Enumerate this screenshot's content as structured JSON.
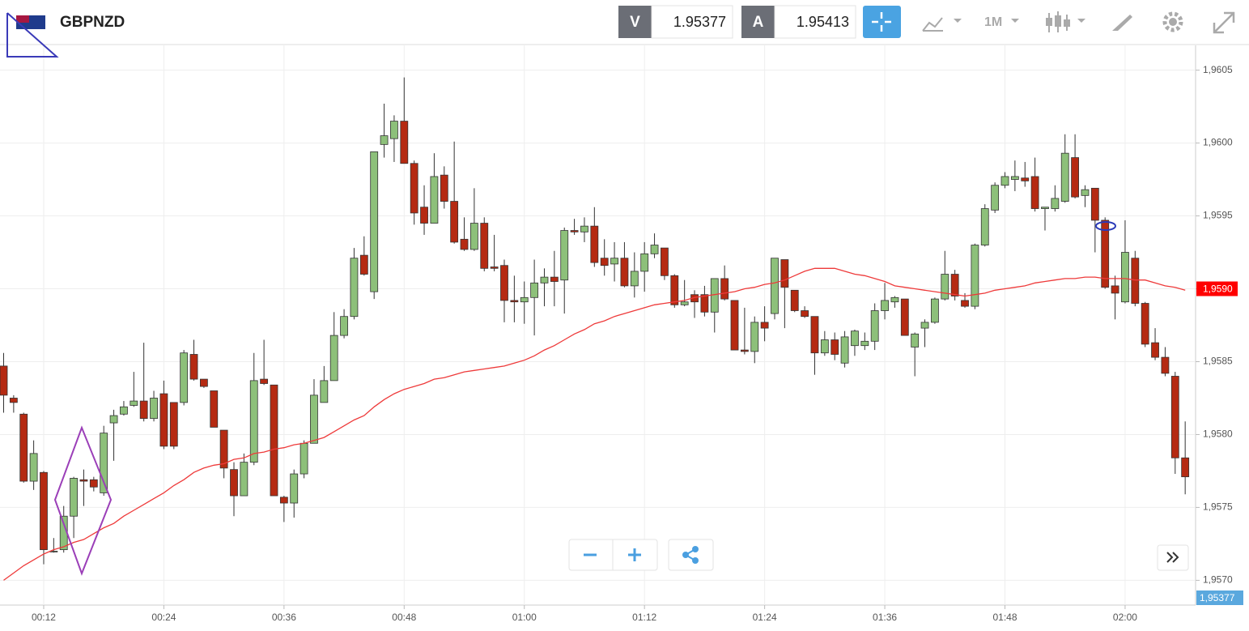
{
  "toolbar": {
    "symbol": "GBPNZD",
    "bid_label": "V",
    "bid": 1.95377,
    "ask_label": "A",
    "ask": 1.95413,
    "timeframe": "1M"
  },
  "chart_data": {
    "type": "candlestick",
    "categories": [
      null,
      null,
      null,
      null,
      "00:12",
      null,
      null,
      null,
      null,
      null,
      null,
      null,
      null,
      null,
      null,
      null,
      "00:24",
      null,
      null,
      null,
      null,
      null,
      null,
      null,
      null,
      null,
      null,
      null,
      "00:36",
      null,
      null,
      null,
      null,
      null,
      null,
      null,
      null,
      null,
      null,
      null,
      "00:48",
      null,
      null,
      null,
      null,
      null,
      null,
      null,
      null,
      null,
      null,
      null,
      "01:00",
      null,
      null,
      null,
      null,
      null,
      null,
      null,
      null,
      null,
      null,
      null,
      "01:12",
      null,
      null,
      null,
      null,
      null,
      null,
      null,
      null,
      null,
      null,
      null,
      "01:24",
      null,
      null,
      null,
      null,
      null,
      null,
      null,
      null,
      null,
      null,
      null,
      "01:36",
      null,
      null,
      null,
      null,
      null,
      null,
      null,
      null,
      null,
      null,
      null,
      "01:48",
      null,
      null,
      null,
      null,
      null,
      null,
      null,
      null,
      null,
      null,
      null,
      "02:00",
      null,
      null,
      null,
      null,
      null,
      null
    ],
    "open": [
      1.95847,
      1.95825,
      1.95814,
      1.95768,
      1.95774,
      1.9572,
      1.95721,
      1.95744,
      1.95769,
      1.95769,
      1.9576,
      1.95808,
      1.95814,
      1.9582,
      1.95823,
      1.95811,
      1.95828,
      1.95822,
      1.95822,
      1.95855,
      1.95838,
      1.9583,
      1.95803,
      1.95776,
      1.95758,
      1.95781,
      1.95838,
      1.95834,
      1.95757,
      1.95753,
      1.95773,
      1.95794,
      1.95822,
      1.95837,
      1.95868,
      1.95881,
      1.95923,
      1.95898,
      1.95999,
      1.96003,
      1.96015,
      1.95986,
      1.95956,
      1.95945,
      1.95978,
      1.9596,
      1.95934,
      1.95927,
      1.95945,
      1.95915,
      1.95916,
      1.95892,
      1.95891,
      1.95894,
      1.95904,
      1.95908,
      1.95906,
      1.9594,
      1.95939,
      1.95943,
      1.95921,
      1.95917,
      1.95921,
      1.95902,
      1.95912,
      1.95924,
      1.95928,
      1.95909,
      1.95889,
      1.95896,
      1.95896,
      1.95884,
      1.95907,
      1.95892,
      1.95858,
      1.95857,
      1.95877,
      1.95883,
      1.9592,
      1.95899,
      1.95885,
      1.95881,
      1.95856,
      1.95865,
      1.95849,
      1.95861,
      1.95861,
      1.95864,
      1.95885,
      1.95891,
      1.95893,
      1.9586,
      1.95873,
      1.95877,
      1.95893,
      1.9591,
      1.95892,
      1.95888,
      1.9593,
      1.95954,
      1.95971,
      1.95975,
      1.95976,
      1.95977,
      1.95955,
      1.95955,
      1.9596,
      1.9599,
      1.95964,
      1.95969,
      1.95947,
      1.95902,
      1.95891,
      1.95921,
      1.9589,
      1.95863,
      1.95853,
      1.9584,
      1.95784
    ],
    "high": [
      1.95856,
      1.95827,
      1.95815,
      1.95796,
      1.95775,
      1.95729,
      1.95751,
      1.95771,
      1.95776,
      1.95771,
      1.95806,
      1.95817,
      1.95823,
      1.95843,
      1.95863,
      1.9583,
      1.95837,
      1.95822,
      1.95858,
      1.95865,
      1.95838,
      1.9583,
      1.95803,
      1.95781,
      1.95787,
      1.95856,
      1.95865,
      1.95834,
      1.95758,
      1.95776,
      1.95796,
      1.95838,
      1.95847,
      1.95884,
      1.95886,
      1.95928,
      1.95936,
      1.95994,
      1.96027,
      1.96019,
      1.96045,
      1.95988,
      1.95971,
      1.95993,
      1.95984,
      1.96001,
      1.95949,
      1.95969,
      1.95949,
      1.95937,
      1.9592,
      1.95909,
      1.95905,
      1.9592,
      1.95914,
      1.95926,
      1.95942,
      1.95948,
      1.95949,
      1.95956,
      1.95934,
      1.95932,
      1.95932,
      1.95925,
      1.95932,
      1.95938,
      1.95928,
      1.9591,
      1.95906,
      1.95899,
      1.95902,
      1.95907,
      1.95916,
      1.95892,
      1.95887,
      1.95881,
      1.95888,
      1.95921,
      1.9592,
      1.95899,
      1.95888,
      1.95881,
      1.95871,
      1.9587,
      1.95871,
      1.95872,
      1.9587,
      1.9589,
      1.95904,
      1.95895,
      1.95893,
      1.9587,
      1.95879,
      1.95894,
      1.95926,
      1.95913,
      1.95897,
      1.95931,
      1.95958,
      1.95973,
      1.9598,
      1.95988,
      1.95987,
      1.9599,
      1.95956,
      1.95971,
      1.96006,
      1.96006,
      1.95971,
      1.95969,
      1.95949,
      1.95909,
      1.95947,
      1.95926,
      1.95891,
      1.95873,
      1.9586,
      1.95843,
      1.95809
    ],
    "low": [
      1.95815,
      1.95815,
      1.95767,
      1.95762,
      1.95711,
      1.95719,
      1.95719,
      1.95729,
      1.95751,
      1.95761,
      1.95758,
      1.95782,
      1.95813,
      1.95819,
      1.95809,
      1.95809,
      1.9579,
      1.9579,
      1.9582,
      1.95837,
      1.95832,
      1.95805,
      1.9577,
      1.95744,
      1.95758,
      1.95779,
      1.95834,
      1.95758,
      1.9574,
      1.95743,
      1.9577,
      1.95794,
      1.95822,
      1.95837,
      1.95866,
      1.95879,
      1.95909,
      1.95893,
      1.9599,
      1.95987,
      1.95986,
      1.95944,
      1.95937,
      1.95945,
      1.95955,
      1.95931,
      1.95926,
      1.95926,
      1.95912,
      1.95912,
      1.95877,
      1.95877,
      1.95876,
      1.95868,
      1.95888,
      1.95888,
      1.95883,
      1.95937,
      1.95932,
      1.95915,
      1.95909,
      1.95905,
      1.95901,
      1.95894,
      1.95898,
      1.95921,
      1.95906,
      1.95887,
      1.95888,
      1.9588,
      1.95881,
      1.9587,
      1.95892,
      1.95858,
      1.95855,
      1.95849,
      1.95864,
      1.95879,
      1.95873,
      1.95884,
      1.9588,
      1.95841,
      1.95854,
      1.95851,
      1.95846,
      1.95854,
      1.95858,
      1.95858,
      1.95879,
      1.95887,
      1.95868,
      1.9584,
      1.9586,
      1.95876,
      1.95892,
      1.95892,
      1.95887,
      1.95886,
      1.95929,
      1.95952,
      1.95969,
      1.95967,
      1.9597,
      1.95953,
      1.9594,
      1.95953,
      1.95959,
      1.95962,
      1.95956,
      1.95925,
      1.959,
      1.95879,
      1.9589,
      1.95888,
      1.9586,
      1.95851,
      1.9584,
      1.95773,
      1.95759
    ],
    "close": [
      1.95827,
      1.95822,
      1.95768,
      1.95787,
      1.95721,
      1.9572,
      1.95744,
      1.9577,
      1.95768,
      1.95764,
      1.95801,
      1.95813,
      1.95819,
      1.95823,
      1.95811,
      1.95825,
      1.95792,
      1.95792,
      1.95856,
      1.95838,
      1.95833,
      1.95805,
      1.95777,
      1.95758,
      1.95781,
      1.95837,
      1.95835,
      1.95758,
      1.95753,
      1.95773,
      1.95794,
      1.95827,
      1.95837,
      1.95868,
      1.95881,
      1.95921,
      1.9591,
      1.95994,
      1.96005,
      1.96015,
      1.95986,
      1.95952,
      1.95945,
      1.95977,
      1.9596,
      1.95932,
      1.95927,
      1.95945,
      1.95914,
      1.95914,
      1.95892,
      1.95891,
      1.95894,
      1.95904,
      1.95908,
      1.95905,
      1.9594,
      1.95939,
      1.95943,
      1.95918,
      1.95916,
      1.95921,
      1.95902,
      1.95912,
      1.95924,
      1.9593,
      1.95909,
      1.95889,
      1.95891,
      1.95891,
      1.95884,
      1.95907,
      1.95893,
      1.95858,
      1.95857,
      1.95877,
      1.95873,
      1.95921,
      1.95901,
      1.95885,
      1.95881,
      1.95856,
      1.95865,
      1.95855,
      1.95867,
      1.95871,
      1.95864,
      1.95885,
      1.95892,
      1.95894,
      1.95868,
      1.95869,
      1.95877,
      1.95893,
      1.9591,
      1.95895,
      1.95888,
      1.9593,
      1.95955,
      1.95971,
      1.95977,
      1.95977,
      1.95974,
      1.95955,
      1.95956,
      1.95962,
      1.95993,
      1.95963,
      1.95968,
      1.95947,
      1.95901,
      1.95897,
      1.95925,
      1.9589,
      1.95862,
      1.95853,
      1.95842,
      1.95784,
      1.95771
    ],
    "ma_values": [
      1.957,
      1.95705,
      1.9571,
      1.95714,
      1.95718,
      1.95721,
      1.95723,
      1.95726,
      1.95728,
      1.95732,
      1.95736,
      1.95739,
      1.95744,
      1.95748,
      1.95752,
      1.95756,
      1.9576,
      1.95765,
      1.95769,
      1.95774,
      1.95777,
      1.95779,
      1.9578,
      1.95783,
      1.95784,
      1.95787,
      1.95788,
      1.9579,
      1.95791,
      1.95793,
      1.95794,
      1.95796,
      1.95798,
      1.95802,
      1.95806,
      1.9581,
      1.95813,
      1.95819,
      1.95824,
      1.95828,
      1.95831,
      1.95833,
      1.95835,
      1.95838,
      1.95839,
      1.95841,
      1.95843,
      1.95844,
      1.95845,
      1.95846,
      1.95847,
      1.95849,
      1.95851,
      1.95854,
      1.95858,
      1.95861,
      1.95865,
      1.95869,
      1.95872,
      1.95876,
      1.95878,
      1.95881,
      1.95883,
      1.95885,
      1.95887,
      1.95889,
      1.9589,
      1.95891,
      1.95892,
      1.95894,
      1.95895,
      1.95896,
      1.95897,
      1.95898,
      1.959,
      1.95901,
      1.95903,
      1.95904,
      1.95906,
      1.95909,
      1.95912,
      1.95914,
      1.95914,
      1.95914,
      1.95912,
      1.9591,
      1.95909,
      1.95907,
      1.95905,
      1.95902,
      1.95901,
      1.959,
      1.95899,
      1.95898,
      1.95897,
      1.95896,
      1.95895,
      1.95896,
      1.95897,
      1.95899,
      1.959,
      1.95901,
      1.95902,
      1.95904,
      1.95905,
      1.95906,
      1.95907,
      1.95907,
      1.95908,
      1.95908,
      1.95907,
      1.95907,
      1.95907,
      1.95906,
      1.95906,
      1.95904,
      1.95902,
      1.95901,
      1.95899
    ],
    "up_color": "#8dc07a",
    "down_color": "#b52a12",
    "ma_color": "#ee3a3a",
    "ylim": [
      1.95683,
      1.96067
    ],
    "yticks": [
      {
        "value": 1.957,
        "label": "1,9570"
      },
      {
        "value": 1.9575,
        "label": "1,9575"
      },
      {
        "value": 1.958,
        "label": "1,9580"
      },
      {
        "value": 1.9585,
        "label": "1,9585"
      },
      {
        "value": 1.959,
        "label": "1,9590"
      },
      {
        "value": 1.9595,
        "label": "1,9595"
      },
      {
        "value": 1.96,
        "label": "1,9600"
      },
      {
        "value": 1.9605,
        "label": "1,9605"
      }
    ],
    "grid": true,
    "ma_badge": {
      "value": 1.959,
      "label": "1,9590"
    },
    "bid_badge": "1,95377"
  }
}
